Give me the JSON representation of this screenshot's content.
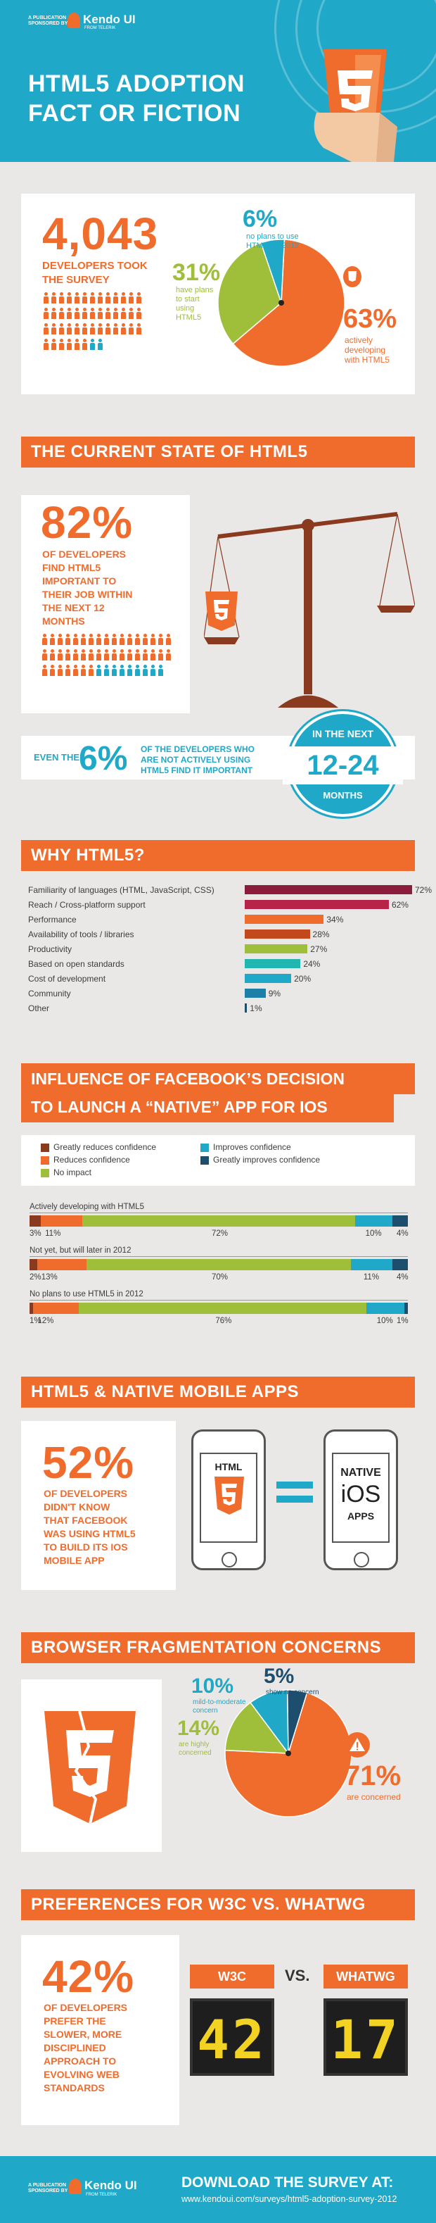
{
  "header": {
    "publication_label": "A PUBLICATION SPONSORED BY",
    "brand": "Kendo UI",
    "brand_tagline": "FROM TELERIK",
    "title_line1": "HTML5 ADOPTION",
    "title_line2": "FACT OR FICTION",
    "logo_digit": "5"
  },
  "survey": {
    "count": "4,043",
    "caption_line1": "DEVELOPERS TOOK",
    "caption_line2": "THE SURVEY",
    "pie": {
      "no_plans_pct": "6%",
      "no_plans_label_1": "no plans to use",
      "no_plans_label_2": "HTML5 in 2012",
      "plan_pct": "31%",
      "plan_label_1": "have plans",
      "plan_label_2": "to start",
      "plan_label_3": "using",
      "plan_label_4": "HTML5",
      "active_pct": "63%",
      "active_label_1": "actively",
      "active_label_2": "developing",
      "active_label_3": "with HTML5"
    }
  },
  "current_state": {
    "banner": "THE CURRENT STATE OF HTML5",
    "pct": "82%",
    "caption_1": "OF DEVELOPERS",
    "caption_2": "FIND HTML5",
    "caption_3": "IMPORTANT TO",
    "caption_4": "THEIR JOB WITHIN",
    "caption_5": "THE NEXT 12",
    "caption_6": "MONTHS",
    "even_the": "EVEN THE",
    "even_pct": "6%",
    "even_text_1": "OF THE DEVELOPERS WHO",
    "even_text_2": "ARE NOT ACTIVELY USING",
    "even_text_3": "HTML5 FIND IT IMPORTANT",
    "badge_top": "IN THE NEXT",
    "badge_mid": "12-24",
    "badge_bottom": "MONTHS"
  },
  "why": {
    "banner": "WHY HTML5?"
  },
  "facebook": {
    "banner_line1": "INFLUENCE OF FACEBOOK’S DECISION",
    "banner_line2": "TO LAUNCH A “NATIVE” APP FOR IOS",
    "legend": [
      {
        "label": "Greatly reduces confidence",
        "color": "#8a3a1e"
      },
      {
        "label": "Reduces confidence",
        "color": "#ef6c2d"
      },
      {
        "label": "No impact",
        "color": "#9fbe3a"
      },
      {
        "label": "Improves confidence",
        "color": "#1fa8c8"
      },
      {
        "label": "Greatly improves confidence",
        "color": "#1d4e6e"
      }
    ],
    "groups": [
      {
        "title": "Actively developing with HTML5",
        "labels": [
          "3%",
          "11%",
          "72%",
          "10%",
          "4%"
        ]
      },
      {
        "title": "Not yet, but will later in 2012",
        "labels": [
          "2%",
          "13%",
          "70%",
          "11%",
          "4%"
        ]
      },
      {
        "title": "No plans to use HTML5 in 2012",
        "labels": [
          "1%",
          "12%",
          "76%",
          "10%",
          "1%"
        ]
      }
    ]
  },
  "native": {
    "banner": "HTML5 & NATIVE MOBILE APPS",
    "pct": "52%",
    "caption_1": "OF DEVELOPERS",
    "caption_2": "DIDN'T KNOW",
    "caption_3": "THAT FACEBOOK",
    "caption_4": "WAS USING HTML5",
    "caption_5": "TO BUILD ITS IOS",
    "caption_6": "MOBILE APP",
    "phone_left_label": "HTML",
    "phone_left_digit": "5",
    "phone_right_1": "NATIVE",
    "phone_right_2": "iOS",
    "phone_right_3": "APPS"
  },
  "fragmentation": {
    "banner": "BROWSER FRAGMENTATION CONCERNS",
    "logo_digit": "5",
    "mild_pct": "10%",
    "mild_label_1": "mild-to-moderate",
    "mild_label_2": "concern",
    "none_pct": "5%",
    "none_label": "show no concern",
    "highly_pct": "14%",
    "highly_label_1": "are highly",
    "highly_label_2": "concerned",
    "concerned_pct": "71%",
    "concerned_label": "are concerned"
  },
  "w3c": {
    "banner": "PREFERENCES FOR W3C VS. WHATWG",
    "pct": "42%",
    "caption_1": "OF DEVELOPERS",
    "caption_2": "PREFER THE",
    "caption_3": "SLOWER, MORE",
    "caption_4": "DISCIPLINED",
    "caption_5": "APPROACH TO",
    "caption_6": "EVOLVING WEB",
    "caption_7": "STANDARDS",
    "left_label": "W3C",
    "vs": "VS.",
    "right_label": "WHATWG",
    "left_value": "42",
    "right_value": "17"
  },
  "footer": {
    "publication_label": "A PUBLICATION SPONSORED BY",
    "brand": "Kendo UI",
    "brand_tagline": "FROM TELERIK",
    "download": "DOWNLOAD THE SURVEY AT:",
    "url": "www.kendoui.com/surveys/html5-adoption-survey-2012"
  },
  "chart_data": [
    {
      "type": "pie",
      "title": "",
      "labels": [
        "actively developing with HTML5",
        "have plans to start using HTML5",
        "no plans to use HTML5 in 2012"
      ],
      "values": [
        63,
        31,
        6
      ],
      "colors": [
        "#ef6c2d",
        "#9fbe3a",
        "#1fa8c8"
      ]
    },
    {
      "type": "bar",
      "orientation": "horizontal",
      "categories": [
        "Familiarity of languages (HTML, JavaScript, CSS)",
        "Reach / Cross-platform support",
        "Performance",
        "Availability of tools / libraries",
        "Productivity",
        "Based on open standards",
        "Cost of development",
        "Community",
        "Other"
      ],
      "values": [
        72,
        62,
        34,
        28,
        27,
        24,
        20,
        9,
        1
      ],
      "value_labels": [
        "72%",
        "62%",
        "34%",
        "28%",
        "27%",
        "24%",
        "20%",
        "9%",
        "1%"
      ],
      "colors": [
        "#8c1c3c",
        "#b8234a",
        "#ef6c2d",
        "#c2491d",
        "#9fbe3a",
        "#22b6b0",
        "#1fa8c8",
        "#1b7fa8",
        "#1d4e6e"
      ],
      "xlim": [
        0,
        72
      ]
    },
    {
      "type": "bar",
      "stacked": true,
      "orientation": "horizontal",
      "categories": [
        "Actively developing with HTML5",
        "Not yet, but will later in 2012",
        "No plans to use HTML5 in 2012"
      ],
      "series": [
        {
          "name": "Greatly reduces confidence",
          "values": [
            3,
            2,
            1
          ]
        },
        {
          "name": "Reduces confidence",
          "values": [
            11,
            13,
            12
          ]
        },
        {
          "name": "No impact",
          "values": [
            72,
            70,
            76
          ]
        },
        {
          "name": "Improves confidence",
          "values": [
            10,
            11,
            10
          ]
        },
        {
          "name": "Greatly improves confidence",
          "values": [
            4,
            4,
            1
          ]
        }
      ]
    },
    {
      "type": "pie",
      "title": "",
      "labels": [
        "are concerned",
        "are highly concerned",
        "mild-to-moderate concern",
        "show no concern"
      ],
      "values": [
        71,
        14,
        10,
        5
      ],
      "colors": [
        "#ef6c2d",
        "#9fbe3a",
        "#1fa8c8",
        "#1d4e6e"
      ]
    }
  ]
}
